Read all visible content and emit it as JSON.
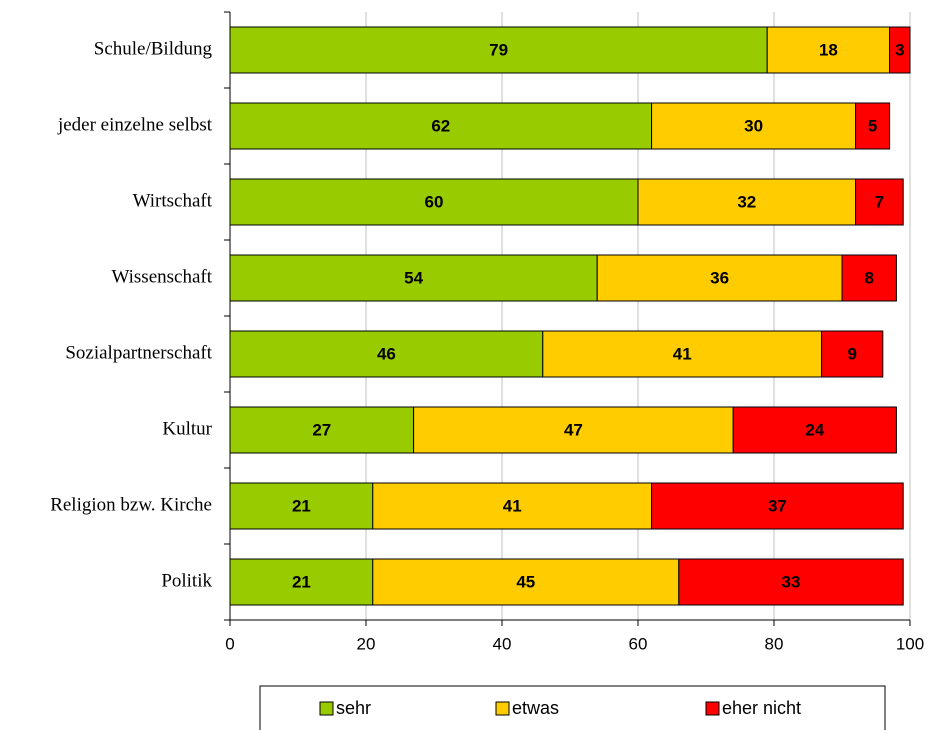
{
  "chart_data": {
    "type": "stacked_barh",
    "categories": [
      "Schule/Bildung",
      "jeder einzelne selbst",
      "Wirtschaft",
      "Wissenschaft",
      "Sozialpartnerschaft",
      "Kultur",
      "Religion bzw. Kirche",
      "Politik"
    ],
    "series": [
      {
        "name": "sehr",
        "color": "#99cc00",
        "values": [
          79,
          62,
          60,
          54,
          46,
          27,
          21,
          21
        ]
      },
      {
        "name": "etwas",
        "color": "#ffcc00",
        "values": [
          18,
          30,
          32,
          36,
          41,
          47,
          41,
          45
        ]
      },
      {
        "name": "eher nicht",
        "color": "#ff0000",
        "values": [
          3,
          5,
          7,
          8,
          9,
          24,
          37,
          33
        ]
      }
    ],
    "xlim": [
      0,
      100
    ],
    "xticks": [
      0,
      20,
      40,
      60,
      80,
      100
    ],
    "grid": true,
    "legend": "bottom"
  }
}
